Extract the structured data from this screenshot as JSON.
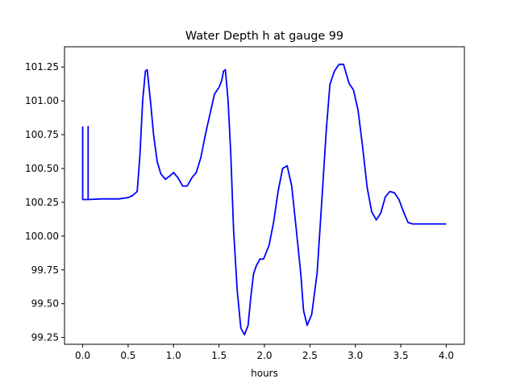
{
  "chart_data": {
    "type": "line",
    "title": "Water Depth h at gauge 99",
    "xlabel": "hours",
    "ylabel": "",
    "xlim": [
      -0.2,
      4.2
    ],
    "ylim": [
      99.2,
      101.4
    ],
    "xticks": [
      0.0,
      0.5,
      1.0,
      1.5,
      2.0,
      2.5,
      3.0,
      3.5,
      4.0
    ],
    "xtick_labels": [
      "0.0",
      "0.5",
      "1.0",
      "1.5",
      "2.0",
      "2.5",
      "3.0",
      "3.5",
      "4.0"
    ],
    "yticks": [
      99.25,
      99.5,
      99.75,
      100.0,
      100.25,
      100.5,
      100.75,
      101.0,
      101.25
    ],
    "ytick_labels": [
      "99.25",
      "99.50",
      "99.75",
      "100.00",
      "100.25",
      "100.50",
      "100.75",
      "101.00",
      "101.25"
    ],
    "grid": false,
    "series": [
      {
        "color": "#0000ff",
        "x": [
          0.0,
          0.0,
          0.06,
          0.06,
          0.06,
          0.2,
          0.4,
          0.5,
          0.55,
          0.6,
          0.63,
          0.66,
          0.69,
          0.71,
          0.73,
          0.75,
          0.78,
          0.82,
          0.86,
          0.91,
          0.95,
          1.0,
          1.05,
          1.1,
          1.15,
          1.2,
          1.25,
          1.3,
          1.35,
          1.4,
          1.45,
          1.5,
          1.53,
          1.55,
          1.57,
          1.6,
          1.63,
          1.66,
          1.7,
          1.74,
          1.78,
          1.82,
          1.85,
          1.88,
          1.91,
          1.95,
          1.99,
          2.05,
          2.1,
          2.15,
          2.2,
          2.25,
          2.3,
          2.35,
          2.4,
          2.43,
          2.47,
          2.52,
          2.58,
          2.63,
          2.68,
          2.72,
          2.77,
          2.82,
          2.87,
          2.93,
          2.98,
          3.03,
          3.08,
          3.13,
          3.18,
          3.23,
          3.28,
          3.33,
          3.38,
          3.43,
          3.48,
          3.53,
          3.58,
          3.63,
          3.68,
          3.73,
          3.78,
          3.83,
          3.88,
          3.93,
          3.97,
          4.0
        ],
        "values": [
          100.81,
          100.27,
          100.27,
          100.81,
          100.27,
          100.275,
          100.275,
          100.285,
          100.3,
          100.33,
          100.6,
          101.0,
          101.22,
          101.23,
          101.1,
          100.97,
          100.75,
          100.55,
          100.46,
          100.42,
          100.44,
          100.47,
          100.43,
          100.37,
          100.37,
          100.43,
          100.47,
          100.58,
          100.75,
          100.9,
          101.05,
          101.1,
          101.15,
          101.22,
          101.23,
          101.0,
          100.6,
          100.05,
          99.6,
          99.32,
          99.27,
          99.34,
          99.55,
          99.72,
          99.78,
          99.83,
          99.83,
          99.93,
          100.1,
          100.33,
          100.5,
          100.52,
          100.37,
          100.05,
          99.72,
          99.45,
          99.34,
          99.42,
          99.73,
          100.25,
          100.78,
          101.12,
          101.22,
          101.27,
          101.27,
          101.13,
          101.08,
          100.93,
          100.66,
          100.36,
          100.18,
          100.12,
          100.17,
          100.29,
          100.33,
          100.32,
          100.27,
          100.18,
          100.1,
          100.09,
          100.09,
          100.09,
          100.09,
          100.09,
          100.09,
          100.09,
          100.09,
          100.09
        ]
      }
    ]
  }
}
